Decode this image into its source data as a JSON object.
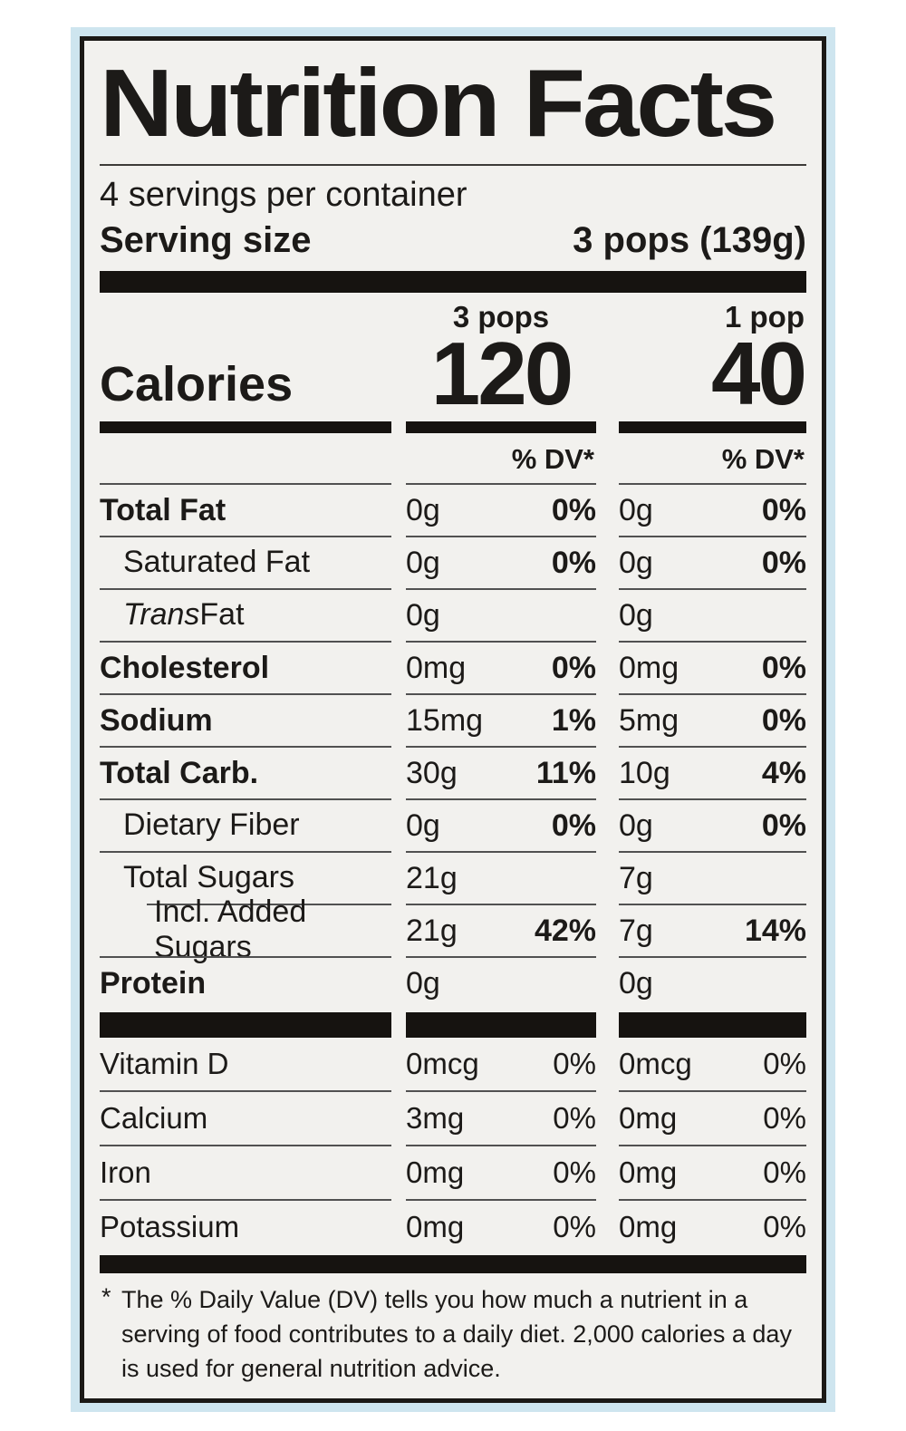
{
  "label": {
    "title": "Nutrition Facts",
    "servings_per_container": "4 servings per container",
    "serving_size_label": "Serving size",
    "serving_size_value": "3 pops (139g)",
    "calories": {
      "label": "Calories",
      "dv_header": "% DV*",
      "columns": [
        {
          "header": "3 pops",
          "value": "120"
        },
        {
          "header": "1 pop",
          "value": "40"
        }
      ]
    },
    "nutrients": [
      {
        "name": "Total Fat",
        "bold": true,
        "indent": 0,
        "col1": {
          "amount": "0g",
          "dv": "0%"
        },
        "col2": {
          "amount": "0g",
          "dv": "0%"
        }
      },
      {
        "name": "Saturated Fat",
        "bold": false,
        "indent": 1,
        "col1": {
          "amount": "0g",
          "dv": "0%"
        },
        "col2": {
          "amount": "0g",
          "dv": "0%"
        }
      },
      {
        "name_italic": "Trans",
        "name": " Fat",
        "bold": false,
        "indent": 1,
        "col1": {
          "amount": "0g",
          "dv": ""
        },
        "col2": {
          "amount": "0g",
          "dv": ""
        }
      },
      {
        "name": "Cholesterol",
        "bold": true,
        "indent": 0,
        "col1": {
          "amount": "0mg",
          "dv": "0%"
        },
        "col2": {
          "amount": "0mg",
          "dv": "0%"
        }
      },
      {
        "name": "Sodium",
        "bold": true,
        "indent": 0,
        "col1": {
          "amount": "15mg",
          "dv": "1%"
        },
        "col2": {
          "amount": "5mg",
          "dv": "0%"
        }
      },
      {
        "name": "Total Carb.",
        "bold": true,
        "indent": 0,
        "col1": {
          "amount": "30g",
          "dv": "11%"
        },
        "col2": {
          "amount": "10g",
          "dv": "4%"
        }
      },
      {
        "name": "Dietary Fiber",
        "bold": false,
        "indent": 1,
        "col1": {
          "amount": "0g",
          "dv": "0%"
        },
        "col2": {
          "amount": "0g",
          "dv": "0%"
        }
      },
      {
        "name": "Total Sugars",
        "bold": false,
        "indent": 1,
        "col1": {
          "amount": "21g",
          "dv": ""
        },
        "col2": {
          "amount": "7g",
          "dv": ""
        }
      },
      {
        "name": "Incl. Added Sugars",
        "bold": false,
        "indent": 2,
        "col1": {
          "amount": "21g",
          "dv": "42%"
        },
        "col2": {
          "amount": "7g",
          "dv": "14%"
        }
      },
      {
        "name": "Protein",
        "bold": true,
        "indent": 0,
        "col1": {
          "amount": "0g",
          "dv": ""
        },
        "col2": {
          "amount": "0g",
          "dv": ""
        }
      }
    ],
    "micronutrients": [
      {
        "name": "Vitamin D",
        "col1": {
          "amount": "0mcg",
          "dv": "0%"
        },
        "col2": {
          "amount": "0mcg",
          "dv": "0%"
        }
      },
      {
        "name": "Calcium",
        "col1": {
          "amount": "3mg",
          "dv": "0%"
        },
        "col2": {
          "amount": "0mg",
          "dv": "0%"
        }
      },
      {
        "name": "Iron",
        "col1": {
          "amount": "0mg",
          "dv": "0%"
        },
        "col2": {
          "amount": "0mg",
          "dv": "0%"
        }
      },
      {
        "name": "Potassium",
        "col1": {
          "amount": "0mg",
          "dv": "0%"
        },
        "col2": {
          "amount": "0mg",
          "dv": "0%"
        }
      }
    ],
    "footnote_marker": "*",
    "footnote": "The % Daily Value (DV) tells you how much a nutrient in a serving of food contributes to a daily diet. 2,000 calories a day is used for general nutrition advice."
  },
  "colors": {
    "page_background": "#ffffff",
    "frame_blue": "#cee5ef",
    "panel_background": "#f2f1ee",
    "ink": "#1b1916"
  }
}
